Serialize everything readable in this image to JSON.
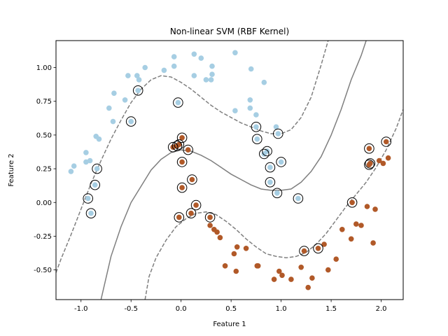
{
  "chart_data": {
    "type": "scatter",
    "title": "Non-linear SVM (RBF Kernel)",
    "xlabel": "Feature 1",
    "ylabel": "Feature 2",
    "xlim": [
      -1.25,
      2.22
    ],
    "ylim": [
      -0.72,
      1.2
    ],
    "xticks": [
      "-1.0",
      "-0.5",
      "0.0",
      "0.5",
      "1.0",
      "1.5",
      "2.0"
    ],
    "xtick_values": [
      -1.0,
      -0.5,
      0.0,
      0.5,
      1.0,
      1.5,
      2.0
    ],
    "yticks": [
      "-0.50",
      "-0.25",
      "0.00",
      "0.25",
      "0.50",
      "0.75",
      "1.00"
    ],
    "ytick_values": [
      -0.5,
      -0.25,
      0.0,
      0.25,
      0.5,
      0.75,
      1.0
    ],
    "grid": false,
    "legend": "none",
    "series": [
      {
        "color": "#a6cee3",
        "points": [
          [
            -1.1,
            0.23
          ],
          [
            -1.07,
            0.27
          ],
          [
            -0.95,
            0.3
          ],
          [
            -0.95,
            0.37
          ],
          [
            -0.91,
            0.31
          ],
          [
            -0.85,
            0.49
          ],
          [
            -0.82,
            0.47
          ],
          [
            -0.93,
            0.03
          ],
          [
            -0.9,
            -0.08
          ],
          [
            -0.86,
            0.13
          ],
          [
            -0.84,
            0.25
          ],
          [
            -0.72,
            0.7
          ],
          [
            -0.67,
            0.81
          ],
          [
            -0.68,
            0.6
          ],
          [
            -0.56,
            0.76
          ],
          [
            -0.53,
            0.94
          ],
          [
            -0.5,
            0.6
          ],
          [
            -0.44,
            0.94
          ],
          [
            -0.43,
            0.83
          ],
          [
            -0.42,
            0.91
          ],
          [
            -0.36,
            1.0
          ],
          [
            -0.17,
            0.98
          ],
          [
            -0.07,
            1.08
          ],
          [
            -0.07,
            1.01
          ],
          [
            -0.03,
            0.74
          ],
          [
            0.13,
            1.1
          ],
          [
            0.13,
            0.94
          ],
          [
            0.2,
            1.07
          ],
          [
            0.25,
            0.91
          ],
          [
            0.3,
            0.91
          ],
          [
            0.31,
            1.01
          ],
          [
            0.31,
            0.95
          ],
          [
            0.54,
            1.11
          ],
          [
            0.54,
            0.68
          ],
          [
            0.69,
            0.7
          ],
          [
            0.69,
            0.76
          ],
          [
            0.7,
            0.99
          ],
          [
            0.75,
            0.65
          ],
          [
            0.75,
            0.56
          ],
          [
            0.76,
            0.47
          ],
          [
            0.83,
            0.89
          ],
          [
            0.83,
            0.36
          ],
          [
            0.86,
            0.38
          ],
          [
            0.89,
            0.26
          ],
          [
            0.89,
            0.15
          ],
          [
            0.95,
            0.56
          ],
          [
            0.96,
            0.07
          ],
          [
            0.97,
            0.51
          ],
          [
            1.0,
            0.3
          ],
          [
            1.17,
            0.03
          ]
        ]
      },
      {
        "color": "#b15928",
        "points": [
          [
            -0.08,
            0.41
          ],
          [
            -0.04,
            0.42
          ],
          [
            -0.02,
            0.43
          ],
          [
            0.01,
            0.48
          ],
          [
            0.01,
            0.3
          ],
          [
            0.01,
            0.11
          ],
          [
            -0.02,
            -0.11
          ],
          [
            0.07,
            0.39
          ],
          [
            0.11,
            0.17
          ],
          [
            0.1,
            -0.08
          ],
          [
            0.15,
            -0.02
          ],
          [
            0.29,
            -0.11
          ],
          [
            0.29,
            -0.17
          ],
          [
            0.33,
            -0.2
          ],
          [
            0.36,
            -0.22
          ],
          [
            0.39,
            -0.26
          ],
          [
            0.44,
            -0.47
          ],
          [
            0.53,
            -0.38
          ],
          [
            0.56,
            -0.33
          ],
          [
            0.55,
            -0.51
          ],
          [
            0.65,
            -0.34
          ],
          [
            0.76,
            -0.47
          ],
          [
            0.77,
            -0.47
          ],
          [
            0.93,
            -0.57
          ],
          [
            0.98,
            -0.51
          ],
          [
            1.01,
            -0.54
          ],
          [
            1.1,
            -0.57
          ],
          [
            1.2,
            -0.48
          ],
          [
            1.23,
            -0.36
          ],
          [
            1.27,
            -0.63
          ],
          [
            1.31,
            -0.56
          ],
          [
            1.37,
            -0.34
          ],
          [
            1.43,
            -0.31
          ],
          [
            1.47,
            -0.5
          ],
          [
            1.55,
            -0.42
          ],
          [
            1.61,
            -0.2
          ],
          [
            1.7,
            -0.27
          ],
          [
            1.71,
            0.0
          ],
          [
            1.75,
            -0.16
          ],
          [
            1.8,
            -0.17
          ],
          [
            1.86,
            -0.03
          ],
          [
            1.88,
            0.28
          ],
          [
            1.88,
            0.4
          ],
          [
            1.89,
            0.29
          ],
          [
            1.92,
            -0.3
          ],
          [
            1.94,
            -0.05
          ],
          [
            1.98,
            0.31
          ],
          [
            2.02,
            0.29
          ],
          [
            2.05,
            0.45
          ],
          [
            2.07,
            0.33
          ]
        ]
      }
    ],
    "support_vectors": [
      [
        -0.93,
        0.03
      ],
      [
        -0.9,
        -0.08
      ],
      [
        -0.86,
        0.13
      ],
      [
        -0.84,
        0.25
      ],
      [
        -0.5,
        0.6
      ],
      [
        -0.43,
        0.83
      ],
      [
        -0.03,
        0.74
      ],
      [
        0.75,
        0.56
      ],
      [
        0.76,
        0.47
      ],
      [
        0.83,
        0.36
      ],
      [
        0.86,
        0.38
      ],
      [
        0.89,
        0.26
      ],
      [
        0.89,
        0.15
      ],
      [
        0.96,
        0.07
      ],
      [
        0.97,
        0.51
      ],
      [
        1.0,
        0.3
      ],
      [
        1.17,
        0.03
      ],
      [
        -0.08,
        0.41
      ],
      [
        -0.04,
        0.42
      ],
      [
        -0.02,
        0.43
      ],
      [
        0.01,
        0.48
      ],
      [
        0.01,
        0.3
      ],
      [
        0.01,
        0.11
      ],
      [
        -0.02,
        -0.11
      ],
      [
        0.07,
        0.39
      ],
      [
        0.11,
        0.17
      ],
      [
        0.1,
        -0.08
      ],
      [
        0.15,
        -0.02
      ],
      [
        0.29,
        -0.11
      ],
      [
        1.23,
        -0.36
      ],
      [
        1.37,
        -0.34
      ],
      [
        1.71,
        0.0
      ],
      [
        1.88,
        0.28
      ],
      [
        1.88,
        0.4
      ],
      [
        1.89,
        0.29
      ],
      [
        2.05,
        0.45
      ]
    ],
    "decision_boundary": [
      [
        -0.8,
        -0.72
      ],
      [
        -0.7,
        -0.4
      ],
      [
        -0.6,
        -0.18
      ],
      [
        -0.5,
        -0.0
      ],
      [
        -0.4,
        0.12
      ],
      [
        -0.3,
        0.24
      ],
      [
        -0.2,
        0.32
      ],
      [
        -0.1,
        0.37
      ],
      [
        0.0,
        0.39
      ],
      [
        0.1,
        0.38
      ],
      [
        0.2,
        0.35
      ],
      [
        0.3,
        0.31
      ],
      [
        0.4,
        0.26
      ],
      [
        0.5,
        0.21
      ],
      [
        0.6,
        0.17
      ],
      [
        0.7,
        0.13
      ],
      [
        0.8,
        0.1
      ],
      [
        0.9,
        0.09
      ],
      [
        1.0,
        0.09
      ],
      [
        1.1,
        0.1
      ],
      [
        1.2,
        0.15
      ],
      [
        1.3,
        0.23
      ],
      [
        1.4,
        0.34
      ],
      [
        1.5,
        0.5
      ],
      [
        1.6,
        0.69
      ],
      [
        1.7,
        0.91
      ],
      [
        1.8,
        1.09
      ],
      [
        1.85,
        1.2
      ]
    ],
    "margin_upper": [
      [
        -1.25,
        -0.52
      ],
      [
        -1.2,
        -0.42
      ],
      [
        -1.1,
        -0.24
      ],
      [
        -1.0,
        -0.05
      ],
      [
        -0.9,
        0.14
      ],
      [
        -0.8,
        0.31
      ],
      [
        -0.7,
        0.47
      ],
      [
        -0.6,
        0.61
      ],
      [
        -0.5,
        0.74
      ],
      [
        -0.4,
        0.84
      ],
      [
        -0.3,
        0.91
      ],
      [
        -0.2,
        0.94
      ],
      [
        -0.1,
        0.93
      ],
      [
        0.0,
        0.89
      ],
      [
        0.1,
        0.84
      ],
      [
        0.2,
        0.78
      ],
      [
        0.3,
        0.72
      ],
      [
        0.4,
        0.67
      ],
      [
        0.5,
        0.63
      ],
      [
        0.6,
        0.59
      ],
      [
        0.7,
        0.56
      ],
      [
        0.8,
        0.53
      ],
      [
        0.9,
        0.51
      ],
      [
        1.0,
        0.51
      ],
      [
        1.1,
        0.54
      ],
      [
        1.2,
        0.63
      ],
      [
        1.3,
        0.78
      ],
      [
        1.4,
        1.02
      ],
      [
        1.47,
        1.2
      ]
    ],
    "margin_lower": [
      [
        -0.36,
        -0.72
      ],
      [
        -0.32,
        -0.55
      ],
      [
        -0.25,
        -0.41
      ],
      [
        -0.15,
        -0.28
      ],
      [
        -0.05,
        -0.18
      ],
      [
        0.05,
        -0.12
      ],
      [
        0.15,
        -0.08
      ],
      [
        0.25,
        -0.07
      ],
      [
        0.35,
        -0.09
      ],
      [
        0.45,
        -0.14
      ],
      [
        0.55,
        -0.2
      ],
      [
        0.65,
        -0.27
      ],
      [
        0.75,
        -0.33
      ],
      [
        0.85,
        -0.38
      ],
      [
        0.95,
        -0.4
      ],
      [
        1.05,
        -0.41
      ],
      [
        1.15,
        -0.4
      ],
      [
        1.25,
        -0.37
      ],
      [
        1.35,
        -0.31
      ],
      [
        1.45,
        -0.23
      ],
      [
        1.55,
        -0.13
      ],
      [
        1.65,
        -0.03
      ],
      [
        1.75,
        0.06
      ],
      [
        1.85,
        0.15
      ],
      [
        1.95,
        0.26
      ],
      [
        2.05,
        0.39
      ],
      [
        2.15,
        0.55
      ],
      [
        2.22,
        0.69
      ]
    ]
  }
}
